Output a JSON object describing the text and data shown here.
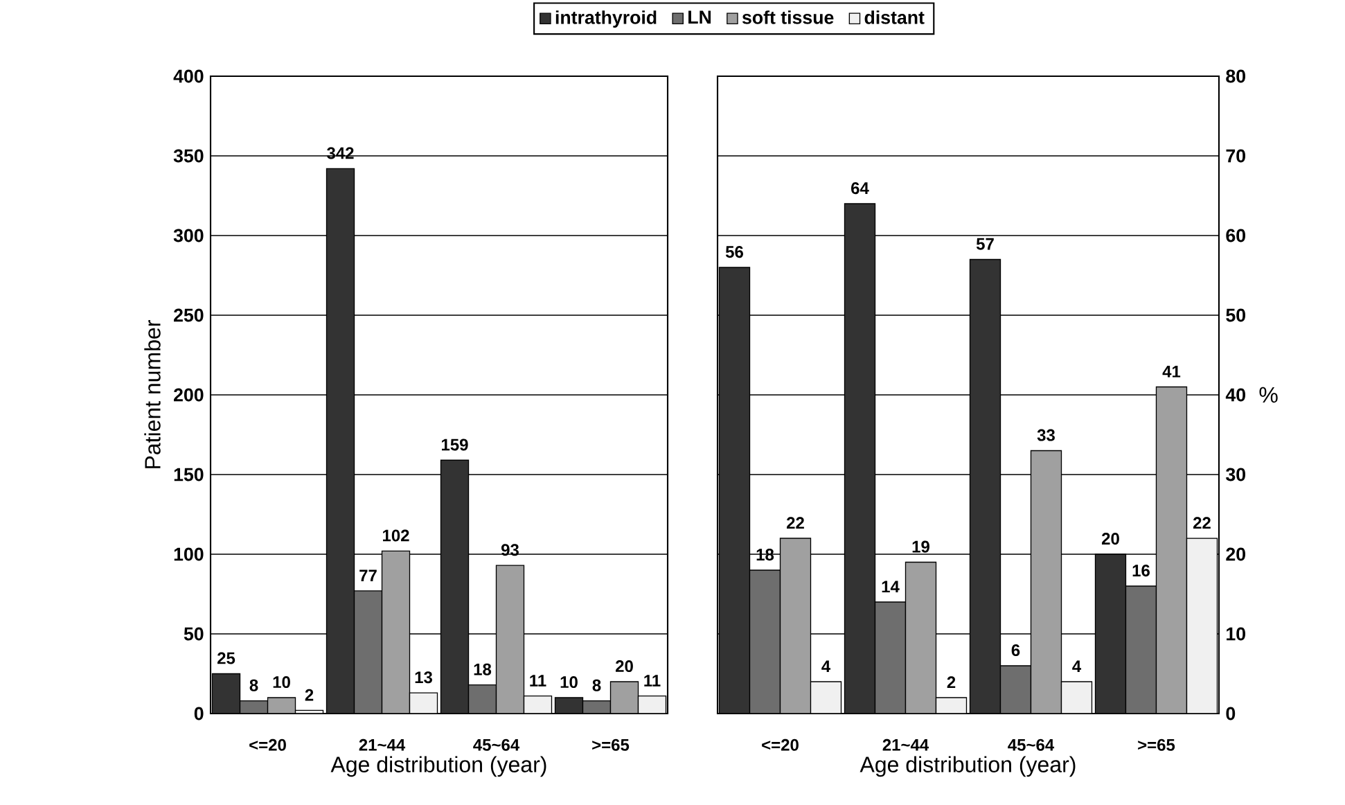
{
  "chart_data": [
    {
      "type": "bar",
      "ylabel": "Patient number",
      "xlabel": "Age distribution (year)",
      "categories": [
        "<=20",
        "21~44",
        "45~64",
        ">=65"
      ],
      "ylim": [
        0,
        400
      ],
      "yticks": [
        0,
        50,
        100,
        150,
        200,
        250,
        300,
        350,
        400
      ],
      "grid": "y",
      "legend": "top",
      "data_labels": true,
      "series": [
        {
          "name": "intrathyroid",
          "color": "#333333",
          "values": [
            25,
            342,
            159,
            10
          ]
        },
        {
          "name": "LN",
          "color": "#6e6e6e",
          "values": [
            8,
            77,
            18,
            8
          ]
        },
        {
          "name": "soft tissue",
          "color": "#a0a0a0",
          "values": [
            10,
            102,
            93,
            20
          ]
        },
        {
          "name": "distant",
          "color": "#f0f0f0",
          "values": [
            2,
            13,
            11,
            11
          ]
        }
      ]
    },
    {
      "type": "bar",
      "ylabel": "%",
      "xlabel": "Age distribution (year)",
      "categories": [
        "<=20",
        "21~44",
        "45~64",
        ">=65"
      ],
      "ylim": [
        0,
        80
      ],
      "yticks": [
        0,
        10,
        20,
        30,
        40,
        50,
        60,
        70,
        80
      ],
      "grid": "y",
      "data_labels": true,
      "series": [
        {
          "color": "#333333",
          "values": [
            56,
            64,
            57,
            20
          ]
        },
        {
          "color": "#6e6e6e",
          "values": [
            18,
            14,
            6,
            16
          ]
        },
        {
          "color": "#a0a0a0",
          "values": [
            22,
            19,
            33,
            41
          ]
        },
        {
          "color": "#f0f0f0",
          "values": [
            4,
            2,
            4,
            22
          ]
        }
      ]
    }
  ]
}
